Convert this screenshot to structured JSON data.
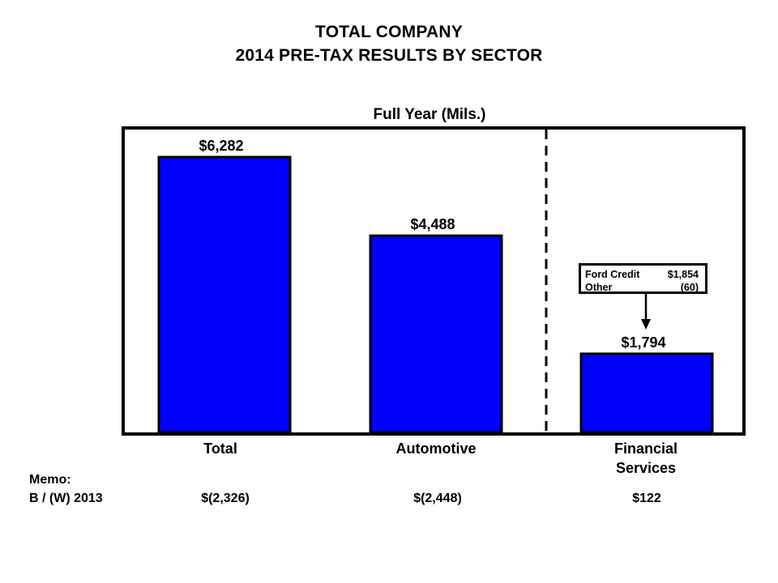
{
  "chart_data": {
    "type": "bar",
    "title": "TOTAL COMPANY",
    "subtitle_line": "2014 PRE-TAX RESULTS BY SECTOR",
    "panel_title": "Full Year (Mils.)",
    "categories": [
      "Total",
      "Automotive",
      "Financial Services"
    ],
    "category_lines": [
      [
        "Total"
      ],
      [
        "Automotive"
      ],
      [
        "Financial",
        "Services"
      ]
    ],
    "values": [
      6282,
      4488,
      1794
    ],
    "value_labels": [
      "$6,282",
      "$4,488",
      "$1,794"
    ],
    "ylim": [
      0,
      7800
    ],
    "bar_color": "#0000ff",
    "divider": "dashed line between Automotive and Financial Services",
    "callout": {
      "rows": [
        {
          "label": "Ford Credit",
          "value": "$1,854"
        },
        {
          "label": "Other",
          "value": "(60)"
        }
      ]
    },
    "memo": {
      "heading": "Memo:",
      "row_label": "B / (W) 2013",
      "values": [
        "$(2,326)",
        "$(2,448)",
        "$122"
      ]
    }
  }
}
